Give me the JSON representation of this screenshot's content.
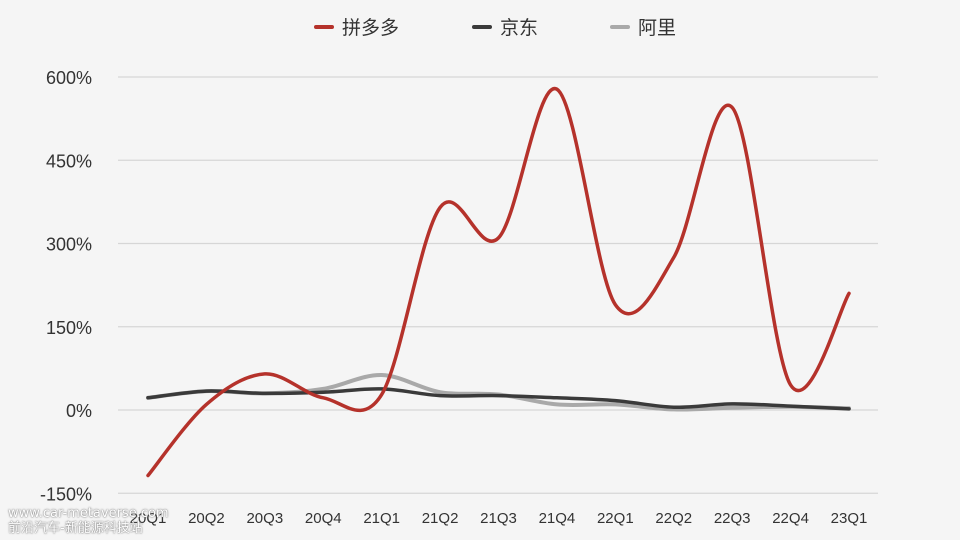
{
  "chart_data": {
    "type": "line",
    "title": "",
    "xlabel": "",
    "ylabel": "",
    "categories": [
      "20Q1",
      "20Q2",
      "20Q3",
      "20Q4",
      "21Q1",
      "21Q2",
      "21Q3",
      "21Q4",
      "22Q1",
      "22Q2",
      "22Q3",
      "22Q4",
      "23Q1"
    ],
    "yticks": [
      -150,
      0,
      150,
      300,
      450,
      600
    ],
    "ytick_labels": [
      "-150%",
      "0%",
      "150%",
      "300%",
      "450%",
      "600%"
    ],
    "ylim": [
      -150,
      600
    ],
    "grid": true,
    "legend_position": "top-center",
    "series": [
      {
        "name": "拼多多",
        "color": "#b5322b",
        "values": [
          -118,
          10,
          65,
          22,
          28,
          365,
          310,
          578,
          190,
          275,
          545,
          45,
          210
        ]
      },
      {
        "name": "京东",
        "color": "#3a3a3a",
        "values": [
          22,
          34,
          30,
          32,
          38,
          26,
          26,
          22,
          17,
          5,
          11,
          7,
          2
        ]
      },
      {
        "name": "阿里",
        "color": "#a9a9a9",
        "values": [
          22,
          34,
          30,
          38,
          63,
          32,
          28,
          10,
          10,
          1,
          4,
          6,
          3
        ]
      }
    ]
  },
  "watermark": {
    "line1": "www.car-metaverse.com",
    "line2": "前沿汽车-新能源科技站"
  }
}
